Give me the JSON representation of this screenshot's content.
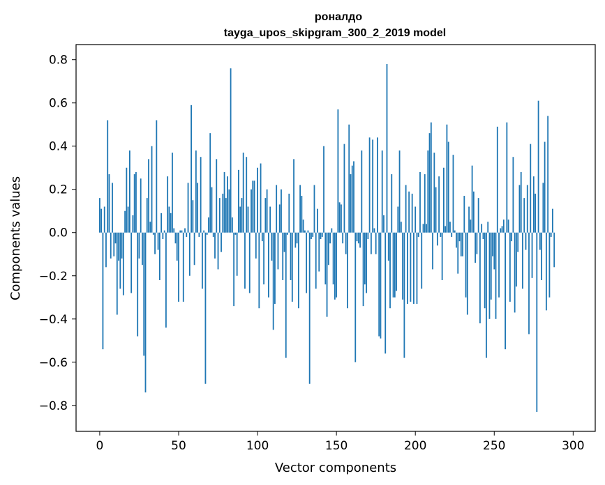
{
  "chart_data": {
    "type": "bar",
    "title": "роналдо",
    "subtitle": "tayga_upos_skipgram_300_2_2019 model",
    "xlabel": "Vector components",
    "ylabel": "Components values",
    "xlim": [
      -15,
      314
    ],
    "ylim": [
      -0.92,
      0.87
    ],
    "xticks": [
      0,
      50,
      100,
      150,
      200,
      250,
      300
    ],
    "xtick_labels": [
      "0",
      "50",
      "100",
      "150",
      "200",
      "250",
      "300"
    ],
    "yticks": [
      -0.8,
      -0.6,
      -0.4,
      -0.2,
      0.0,
      0.2,
      0.4,
      0.6,
      0.8
    ],
    "ytick_labels": [
      "−0.8",
      "−0.6",
      "−0.4",
      "−0.2",
      "0.0",
      "0.2",
      "0.4",
      "0.6",
      "0.8"
    ],
    "color": "#1f77b4",
    "categories_range": [
      0,
      299
    ],
    "values": [
      0.16,
      0.11,
      -0.54,
      0.12,
      -0.16,
      0.52,
      0.27,
      -0.12,
      0.23,
      -0.11,
      -0.05,
      -0.38,
      -0.13,
      -0.26,
      -0.12,
      -0.29,
      0.1,
      0.3,
      0.12,
      0.38,
      -0.28,
      0.08,
      0.27,
      0.28,
      -0.48,
      -0.12,
      0.25,
      -0.15,
      -0.57,
      -0.74,
      0.16,
      0.34,
      0.05,
      0.4,
      -0.01,
      -0.1,
      0.52,
      -0.08,
      -0.22,
      0.09,
      -0.03,
      0.01,
      -0.44,
      0.26,
      0.12,
      0.09,
      0.37,
      0.02,
      -0.05,
      -0.13,
      -0.32,
      0.01,
      0.01,
      -0.32,
      0.02,
      -0.02,
      0.23,
      -0.2,
      0.59,
      0.15,
      -0.15,
      0.38,
      0.23,
      -0.02,
      0.35,
      -0.26,
      0.01,
      -0.7,
      -0.01,
      0.07,
      0.46,
      0.21,
      -0.02,
      -0.12,
      0.34,
      -0.17,
      0.16,
      -0.09,
      0.18,
      0.28,
      0.16,
      0.26,
      0.2,
      0.76,
      0.07,
      -0.34,
      -0.01,
      -0.2,
      0.29,
      0.12,
      0.16,
      0.37,
      -0.26,
      0.35,
      0.12,
      -0.28,
      0.2,
      0.24,
      0.24,
      -0.12,
      0.3,
      -0.35,
      0.32,
      -0.04,
      -0.24,
      0.16,
      0.2,
      -0.3,
      0.12,
      -0.13,
      -0.45,
      -0.33,
      0.22,
      -0.17,
      0.13,
      0.2,
      -0.22,
      -0.09,
      -0.58,
      -0.01,
      0.18,
      -0.22,
      -0.32,
      0.34,
      -0.07,
      -0.05,
      -0.35,
      0.22,
      0.17,
      0.06,
      0.01,
      -0.28,
      0.01,
      -0.7,
      -0.03,
      -0.02,
      0.22,
      -0.26,
      0.11,
      -0.18,
      -0.03,
      -0.02,
      0.4,
      -0.24,
      -0.39,
      -0.15,
      -0.05,
      0.02,
      -0.24,
      -0.31,
      -0.3,
      0.57,
      0.14,
      0.13,
      -0.05,
      0.41,
      -0.1,
      -0.35,
      0.5,
      0.27,
      0.31,
      0.33,
      -0.6,
      -0.04,
      -0.05,
      -0.07,
      0.38,
      -0.34,
      -0.24,
      -0.28,
      -0.03,
      0.44,
      -0.1,
      0.43,
      0.02,
      -0.1,
      0.44,
      -0.48,
      -0.49,
      0.38,
      0.08,
      -0.56,
      0.78,
      -0.13,
      -0.35,
      0.27,
      -0.3,
      -0.3,
      -0.27,
      0.12,
      0.38,
      0.05,
      -0.31,
      -0.58,
      0.22,
      -0.33,
      0.19,
      -0.32,
      0.18,
      -0.33,
      0.12,
      -0.33,
      -0.02,
      0.28,
      -0.26,
      0.04,
      0.27,
      0.04,
      0.38,
      0.46,
      0.51,
      -0.17,
      0.37,
      0.21,
      -0.06,
      0.26,
      -0.02,
      -0.22,
      0.3,
      0.03,
      0.5,
      0.42,
      0.05,
      -0.02,
      0.36,
      0.01,
      -0.07,
      -0.19,
      -0.04,
      -0.11,
      -0.11,
      0.17,
      -0.3,
      -0.38,
      0.12,
      0.06,
      0.31,
      0.19,
      -0.14,
      -0.1,
      0.16,
      -0.42,
      0.04,
      -0.03,
      -0.35,
      -0.58,
      0.05,
      -0.4,
      -0.31,
      -0.11,
      -0.17,
      -0.4,
      0.49,
      -0.3,
      0.02,
      0.03,
      0.06,
      -0.54,
      0.51,
      0.06,
      -0.32,
      -0.04,
      0.35,
      -0.37,
      -0.25,
      -0.09,
      0.22,
      0.28,
      -0.26,
      0.16,
      -0.08,
      0.22,
      -0.47,
      0.41,
      -0.21,
      0.26,
      0.18,
      -0.83,
      0.61,
      -0.08,
      -0.22,
      0.23,
      0.42,
      -0.36,
      0.54,
      -0.3,
      -0.02,
      0.11,
      -0.16
    ]
  }
}
